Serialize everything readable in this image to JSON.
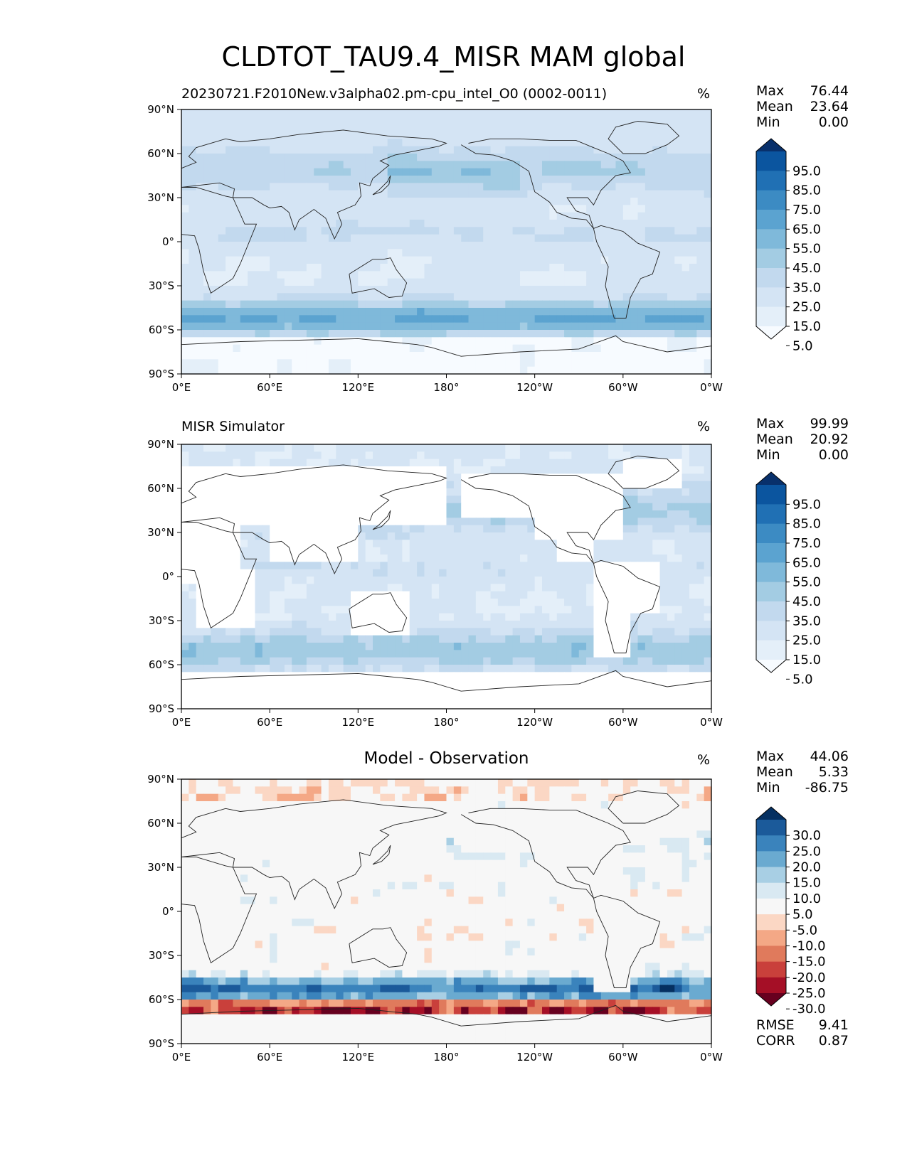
{
  "figure": {
    "title": "CLDTOT_TAU9.4_MISR MAM global"
  },
  "axes": {
    "y_ticks": [
      "90°N",
      "60°N",
      "30°N",
      "0°",
      "30°S",
      "60°S",
      "90°S"
    ],
    "x_ticks": [
      "0°E",
      "60°E",
      "120°E",
      "180°",
      "120°W",
      "60°W",
      "0°W"
    ]
  },
  "panels": [
    {
      "title": "20230721.F2010New.v3alpha02.pm-cpu_intel_O0 (0002-0011)",
      "units": "%",
      "stats": [
        {
          "label": "Max",
          "value": "76.44"
        },
        {
          "label": "Mean",
          "value": "23.64"
        },
        {
          "label": "Min",
          "value": "0.00"
        }
      ],
      "colorbar": {
        "labels": [
          "95.0",
          "85.0",
          "75.0",
          "65.0",
          "55.0",
          "45.0",
          "35.0",
          "25.0",
          "15.0",
          "5.0"
        ],
        "colors": [
          "#f7fbff",
          "#e4eff9",
          "#d4e4f4",
          "#c2d9ee",
          "#a3cce3",
          "#7fb9da",
          "#5ba3d0",
          "#3c8bc3",
          "#2070b4",
          "#0b559f",
          "#08306b"
        ]
      }
    },
    {
      "title": "MISR Simulator",
      "units": "%",
      "stats": [
        {
          "label": "Max",
          "value": "99.99"
        },
        {
          "label": "Mean",
          "value": "20.92"
        },
        {
          "label": "Min",
          "value": "0.00"
        }
      ],
      "colorbar": {
        "labels": [
          "95.0",
          "85.0",
          "75.0",
          "65.0",
          "55.0",
          "45.0",
          "35.0",
          "25.0",
          "15.0",
          "5.0"
        ],
        "colors": [
          "#f7fbff",
          "#e4eff9",
          "#d4e4f4",
          "#c2d9ee",
          "#a3cce3",
          "#7fb9da",
          "#5ba3d0",
          "#3c8bc3",
          "#2070b4",
          "#0b559f",
          "#08306b"
        ]
      }
    },
    {
      "title": "Model - Observation",
      "units": "%",
      "stats": [
        {
          "label": "Max",
          "value": "44.06"
        },
        {
          "label": "Mean",
          "value": "5.33"
        },
        {
          "label": "Min",
          "value": "-86.75"
        }
      ],
      "extra_stats": [
        {
          "label": "RMSE",
          "value": "9.41"
        },
        {
          "label": "CORR",
          "value": "0.87"
        }
      ],
      "colorbar": {
        "labels": [
          "30.0",
          "25.0",
          "20.0",
          "15.0",
          "10.0",
          "5.0",
          "-5.0",
          "-10.0",
          "-15.0",
          "-20.0",
          "-25.0",
          "-30.0"
        ],
        "colors": [
          "#67001f",
          "#a50f26",
          "#c9403b",
          "#e07a5c",
          "#f4a886",
          "#fbd7c4",
          "#f7f7f7",
          "#d9e9f2",
          "#a8cfe4",
          "#6aaad0",
          "#3a83bc",
          "#1b5a9a",
          "#053061"
        ]
      }
    }
  ],
  "chart_data": [
    {
      "type": "heatmap",
      "title": "20230721.F2010New.v3alpha02.pm-cpu_intel_O0 (0002-0011)",
      "units": "%",
      "xlim": [
        0,
        360
      ],
      "ylim": [
        -90,
        90
      ],
      "x_ticks": [
        "0°E",
        "60°E",
        "120°E",
        "180°",
        "120°W",
        "60°W",
        "0°W"
      ],
      "y_ticks": [
        "90°N",
        "60°N",
        "30°N",
        "0°",
        "30°S",
        "60°S",
        "90°S"
      ],
      "levels": [
        5,
        15,
        25,
        35,
        45,
        55,
        65,
        75,
        85,
        95
      ],
      "max": 76.44,
      "mean": 23.64,
      "min": 0.0
    },
    {
      "type": "heatmap",
      "title": "MISR Simulator",
      "units": "%",
      "xlim": [
        0,
        360
      ],
      "ylim": [
        -90,
        90
      ],
      "x_ticks": [
        "0°E",
        "60°E",
        "120°E",
        "180°",
        "120°W",
        "60°W",
        "0°W"
      ],
      "y_ticks": [
        "90°N",
        "60°N",
        "30°N",
        "0°",
        "30°S",
        "60°S",
        "90°S"
      ],
      "levels": [
        5,
        15,
        25,
        35,
        45,
        55,
        65,
        75,
        85,
        95
      ],
      "max": 99.99,
      "mean": 20.92,
      "min": 0.0
    },
    {
      "type": "heatmap",
      "title": "Model - Observation",
      "units": "%",
      "xlim": [
        0,
        360
      ],
      "ylim": [
        -90,
        90
      ],
      "x_ticks": [
        "0°E",
        "60°E",
        "120°E",
        "180°",
        "120°W",
        "60°W",
        "0°W"
      ],
      "y_ticks": [
        "90°N",
        "60°N",
        "30°N",
        "0°",
        "30°S",
        "60°S",
        "90°S"
      ],
      "levels": [
        -30,
        -25,
        -20,
        -15,
        -10,
        -5,
        5,
        10,
        15,
        20,
        25,
        30
      ],
      "max": 44.06,
      "mean": 5.33,
      "min": -86.75,
      "rmse": 9.41,
      "corr": 0.87
    }
  ]
}
